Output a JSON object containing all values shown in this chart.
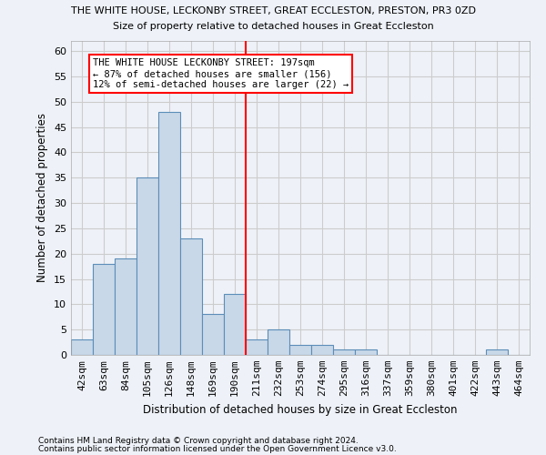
{
  "title": "THE WHITE HOUSE, LECKONBY STREET, GREAT ECCLESTON, PRESTON, PR3 0ZD",
  "subtitle": "Size of property relative to detached houses in Great Eccleston",
  "xlabel": "Distribution of detached houses by size in Great Eccleston",
  "ylabel": "Number of detached properties",
  "footnote1": "Contains HM Land Registry data © Crown copyright and database right 2024.",
  "footnote2": "Contains public sector information licensed under the Open Government Licence v3.0.",
  "bin_labels": [
    "42sqm",
    "63sqm",
    "84sqm",
    "105sqm",
    "126sqm",
    "148sqm",
    "169sqm",
    "190sqm",
    "211sqm",
    "232sqm",
    "253sqm",
    "274sqm",
    "295sqm",
    "316sqm",
    "337sqm",
    "359sqm",
    "380sqm",
    "401sqm",
    "422sqm",
    "443sqm",
    "464sqm"
  ],
  "bar_values": [
    3,
    18,
    19,
    35,
    48,
    23,
    8,
    12,
    3,
    5,
    2,
    2,
    1,
    1,
    0,
    0,
    0,
    0,
    0,
    1,
    0
  ],
  "bar_color": "#c8d8e8",
  "bar_edge_color": "#5b8db8",
  "grid_color": "#cccccc",
  "bg_color": "#eef2f8",
  "vline_x": 7.5,
  "vline_color": "red",
  "annotation_text": "THE WHITE HOUSE LECKONBY STREET: 197sqm\n← 87% of detached houses are smaller (156)\n12% of semi-detached houses are larger (22) →",
  "annotation_box_color": "white",
  "annotation_box_edge": "red",
  "ylim": [
    0,
    62
  ],
  "yticks": [
    0,
    5,
    10,
    15,
    20,
    25,
    30,
    35,
    40,
    45,
    50,
    55,
    60
  ]
}
